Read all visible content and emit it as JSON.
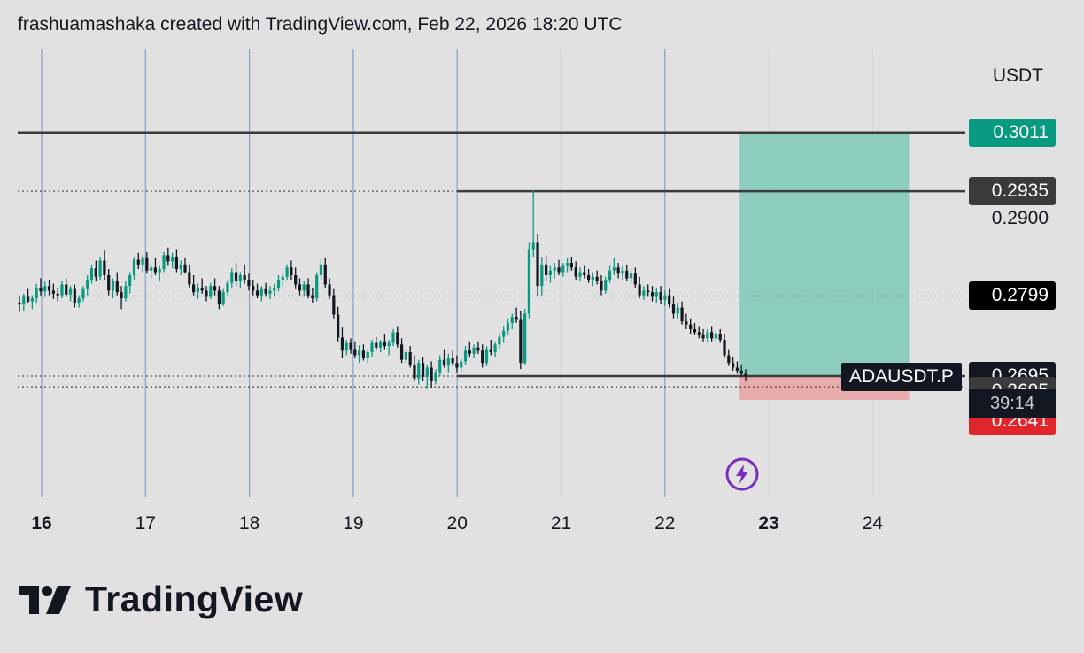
{
  "header": {
    "attribution": "frashuamashaka created with TradingView.com, Feb 22, 2026 18:20 UTC"
  },
  "symbol": "ADAUSDT.P",
  "currency": "USDT",
  "countdown": "39:14",
  "logo_text": "TradingView",
  "colors": {
    "up": "#089981",
    "down": "#131722",
    "target_zone": "#88cbbc",
    "stop_zone": "#e9a6a8",
    "grid_vertical": "#8c9cc6",
    "accent_purple": "#7b2cbf"
  },
  "price_labels": [
    {
      "text": "0.3011",
      "bg": "#089981",
      "fg": "#ffffff",
      "price": 0.3011
    },
    {
      "text": "0.2935",
      "bg": "#3b3b3b",
      "fg": "#ffffff",
      "price": 0.2935
    },
    {
      "text": "0.2900",
      "bg": "transparent",
      "fg": "#131722",
      "price": 0.29
    },
    {
      "text": "0.2799",
      "bg": "#000000",
      "fg": "#ffffff",
      "price": 0.2799
    },
    {
      "text": "0.2695",
      "bg": "#131722",
      "fg": "#ffffff",
      "price": 0.2695
    },
    {
      "text": "0.2695",
      "bg": "#3b3b3b",
      "fg": "#ffffff",
      "price": 0.2675
    },
    {
      "text": "0.2694",
      "bg": "#787b86",
      "fg": "#ffffff",
      "price": 0.2655
    },
    {
      "text": "0.2641",
      "bg": "#e0262d",
      "fg": "#ffffff",
      "price": 0.2636
    }
  ],
  "chart_data": {
    "type": "candlestick",
    "symbol": "ADAUSDT.P",
    "x_axis": {
      "ticks": [
        "16",
        "17",
        "18",
        "19",
        "20",
        "21",
        "22",
        "23",
        "24"
      ],
      "bold_ticks": [
        "16",
        "23"
      ]
    },
    "y_axis": {
      "unit": "USDT",
      "range": [
        0.263,
        0.305
      ]
    },
    "horizontal_levels": [
      {
        "price": 0.3011,
        "style": "solid",
        "from_day": 15.8,
        "to_day": 25.0
      },
      {
        "price": 0.2935,
        "style": "solid",
        "from_day": 20.0,
        "to_day": 25.0
      },
      {
        "price": 0.2935,
        "style": "dotted",
        "from_day": 15.8,
        "to_day": 20.0
      },
      {
        "price": 0.2799,
        "style": "dotted",
        "from_day": 15.8,
        "to_day": 25.0
      },
      {
        "price": 0.2695,
        "style": "solid",
        "from_day": 20.0,
        "to_day": 25.0
      },
      {
        "price": 0.2695,
        "style": "dotted",
        "from_day": 15.8,
        "to_day": 20.0
      },
      {
        "price": 0.2681,
        "style": "dotted",
        "from_day": 15.8,
        "to_day": 25.0
      }
    ],
    "position": {
      "type": "long",
      "entry": 0.2695,
      "target": 0.3011,
      "stop": 0.2664,
      "from_day": 22.72,
      "to_day": 24.35
    },
    "candles": [
      [
        0.279,
        0.2798,
        0.2778,
        0.2788
      ],
      [
        0.2788,
        0.2802,
        0.278,
        0.2798
      ],
      [
        0.2798,
        0.2808,
        0.279,
        0.2792
      ],
      [
        0.2792,
        0.28,
        0.2782,
        0.2796
      ],
      [
        0.2796,
        0.2815,
        0.279,
        0.281
      ],
      [
        0.281,
        0.2822,
        0.28,
        0.2805
      ],
      [
        0.2805,
        0.2818,
        0.2798,
        0.2812
      ],
      [
        0.2812,
        0.282,
        0.28,
        0.2806
      ],
      [
        0.2806,
        0.2815,
        0.2795,
        0.2802
      ],
      [
        0.2802,
        0.281,
        0.2792,
        0.28
      ],
      [
        0.28,
        0.2818,
        0.2796,
        0.2814
      ],
      [
        0.2814,
        0.2822,
        0.2798,
        0.2801
      ],
      [
        0.2801,
        0.2812,
        0.2792,
        0.2808
      ],
      [
        0.2808,
        0.2814,
        0.2784,
        0.279
      ],
      [
        0.279,
        0.28,
        0.2784,
        0.2796
      ],
      [
        0.2796,
        0.2812,
        0.2792,
        0.2808
      ],
      [
        0.2808,
        0.2826,
        0.28,
        0.282
      ],
      [
        0.282,
        0.284,
        0.2815,
        0.2835
      ],
      [
        0.2835,
        0.2845,
        0.2818,
        0.2824
      ],
      [
        0.2824,
        0.285,
        0.282,
        0.2845
      ],
      [
        0.2845,
        0.2858,
        0.282,
        0.2826
      ],
      [
        0.2826,
        0.2834,
        0.28,
        0.2806
      ],
      [
        0.2806,
        0.2822,
        0.2796,
        0.2818
      ],
      [
        0.2818,
        0.283,
        0.28,
        0.2804
      ],
      [
        0.2804,
        0.2812,
        0.2782,
        0.2796
      ],
      [
        0.2796,
        0.2818,
        0.2792,
        0.2812
      ],
      [
        0.2812,
        0.283,
        0.2802,
        0.2826
      ],
      [
        0.2826,
        0.285,
        0.282,
        0.2846
      ],
      [
        0.2846,
        0.2855,
        0.2834,
        0.284
      ],
      [
        0.284,
        0.2852,
        0.283,
        0.2848
      ],
      [
        0.2848,
        0.2856,
        0.2828,
        0.2832
      ],
      [
        0.2832,
        0.284,
        0.2822,
        0.2836
      ],
      [
        0.2836,
        0.2848,
        0.2826,
        0.283
      ],
      [
        0.283,
        0.2838,
        0.2818,
        0.2834
      ],
      [
        0.2834,
        0.2856,
        0.283,
        0.2852
      ],
      [
        0.2852,
        0.2862,
        0.2838,
        0.2844
      ],
      [
        0.2844,
        0.2855,
        0.2835,
        0.285
      ],
      [
        0.285,
        0.286,
        0.283,
        0.2834
      ],
      [
        0.2834,
        0.2845,
        0.2826,
        0.284
      ],
      [
        0.284,
        0.2848,
        0.2828,
        0.283
      ],
      [
        0.283,
        0.284,
        0.281,
        0.2814
      ],
      [
        0.2814,
        0.2826,
        0.28,
        0.2804
      ],
      [
        0.2804,
        0.2815,
        0.2795,
        0.281
      ],
      [
        0.281,
        0.2822,
        0.2802,
        0.2806
      ],
      [
        0.2806,
        0.2812,
        0.2792,
        0.2798
      ],
      [
        0.2798,
        0.2816,
        0.2795,
        0.2812
      ],
      [
        0.2812,
        0.2822,
        0.28,
        0.2806
      ],
      [
        0.2806,
        0.2812,
        0.2782,
        0.2788
      ],
      [
        0.2788,
        0.2808,
        0.2786,
        0.2804
      ],
      [
        0.2804,
        0.282,
        0.28,
        0.2816
      ],
      [
        0.2816,
        0.2835,
        0.281,
        0.283
      ],
      [
        0.283,
        0.2842,
        0.2812,
        0.2818
      ],
      [
        0.2818,
        0.283,
        0.281,
        0.2826
      ],
      [
        0.2826,
        0.284,
        0.2815,
        0.282
      ],
      [
        0.282,
        0.2828,
        0.2806,
        0.2812
      ],
      [
        0.2812,
        0.282,
        0.28,
        0.2806
      ],
      [
        0.2806,
        0.2815,
        0.2796,
        0.28
      ],
      [
        0.28,
        0.2812,
        0.2792,
        0.2808
      ],
      [
        0.2808,
        0.2816,
        0.2798,
        0.2802
      ],
      [
        0.2802,
        0.2812,
        0.2795,
        0.2806
      ],
      [
        0.2806,
        0.2815,
        0.2798,
        0.281
      ],
      [
        0.281,
        0.2826,
        0.2805,
        0.282
      ],
      [
        0.282,
        0.283,
        0.2812,
        0.2824
      ],
      [
        0.2824,
        0.284,
        0.282,
        0.2836
      ],
      [
        0.2836,
        0.2845,
        0.282,
        0.2826
      ],
      [
        0.2826,
        0.2836,
        0.2808,
        0.2814
      ],
      [
        0.2814,
        0.2822,
        0.28,
        0.2806
      ],
      [
        0.2806,
        0.2818,
        0.2798,
        0.2814
      ],
      [
        0.2814,
        0.2822,
        0.2796,
        0.28
      ],
      [
        0.28,
        0.281,
        0.279,
        0.2796
      ],
      [
        0.2796,
        0.283,
        0.2792,
        0.2826
      ],
      [
        0.2826,
        0.2846,
        0.282,
        0.284
      ],
      [
        0.284,
        0.2848,
        0.281,
        0.2814
      ],
      [
        0.2814,
        0.2822,
        0.2795,
        0.28
      ],
      [
        0.28,
        0.2808,
        0.277,
        0.2775
      ],
      [
        0.2775,
        0.2785,
        0.274,
        0.2745
      ],
      [
        0.2745,
        0.2758,
        0.2718,
        0.2728
      ],
      [
        0.2728,
        0.2742,
        0.2722,
        0.2738
      ],
      [
        0.2738,
        0.2744,
        0.2724,
        0.273
      ],
      [
        0.273,
        0.274,
        0.2718,
        0.2722
      ],
      [
        0.2722,
        0.2735,
        0.2712,
        0.2728
      ],
      [
        0.2728,
        0.2736,
        0.2715,
        0.2718
      ],
      [
        0.2718,
        0.273,
        0.2712,
        0.2726
      ],
      [
        0.2726,
        0.2742,
        0.272,
        0.2738
      ],
      [
        0.2738,
        0.2746,
        0.2728,
        0.2732
      ],
      [
        0.2732,
        0.2742,
        0.2726,
        0.274
      ],
      [
        0.274,
        0.275,
        0.273,
        0.2734
      ],
      [
        0.2734,
        0.2742,
        0.2722,
        0.2738
      ],
      [
        0.2738,
        0.2756,
        0.2734,
        0.2752
      ],
      [
        0.2752,
        0.276,
        0.2732,
        0.2736
      ],
      [
        0.2736,
        0.2744,
        0.2712,
        0.2716
      ],
      [
        0.2716,
        0.273,
        0.2712,
        0.2726
      ],
      [
        0.2726,
        0.2734,
        0.2706,
        0.271
      ],
      [
        0.271,
        0.2722,
        0.2688,
        0.2692
      ],
      [
        0.2692,
        0.2716,
        0.2684,
        0.2712
      ],
      [
        0.2712,
        0.272,
        0.2688,
        0.2694
      ],
      [
        0.2694,
        0.271,
        0.2678,
        0.2706
      ],
      [
        0.2706,
        0.2714,
        0.268,
        0.2688
      ],
      [
        0.2688,
        0.2704,
        0.2684,
        0.27
      ],
      [
        0.27,
        0.2722,
        0.2695,
        0.2716
      ],
      [
        0.2716,
        0.273,
        0.2706,
        0.271
      ],
      [
        0.271,
        0.2724,
        0.27,
        0.2718
      ],
      [
        0.2718,
        0.2728,
        0.2708,
        0.2712
      ],
      [
        0.2712,
        0.2722,
        0.27,
        0.2706
      ],
      [
        0.2706,
        0.2718,
        0.27,
        0.2714
      ],
      [
        0.2714,
        0.2734,
        0.271,
        0.2728
      ],
      [
        0.2728,
        0.274,
        0.272,
        0.2724
      ],
      [
        0.2724,
        0.2736,
        0.2718,
        0.2732
      ],
      [
        0.2732,
        0.274,
        0.2724,
        0.2728
      ],
      [
        0.2728,
        0.2736,
        0.2706,
        0.2712
      ],
      [
        0.2712,
        0.2734,
        0.2708,
        0.273
      ],
      [
        0.273,
        0.2742,
        0.2722,
        0.2726
      ],
      [
        0.2726,
        0.274,
        0.272,
        0.2736
      ],
      [
        0.2736,
        0.2752,
        0.273,
        0.2746
      ],
      [
        0.2746,
        0.276,
        0.2738,
        0.2754
      ],
      [
        0.2754,
        0.277,
        0.2748,
        0.2764
      ],
      [
        0.2764,
        0.2776,
        0.2756,
        0.2772
      ],
      [
        0.2772,
        0.2784,
        0.2764,
        0.2768
      ],
      [
        0.2768,
        0.278,
        0.2704,
        0.2712
      ],
      [
        0.2712,
        0.2782,
        0.271,
        0.2776
      ],
      [
        0.2776,
        0.2868,
        0.277,
        0.286
      ],
      [
        0.286,
        0.2936,
        0.285,
        0.2868
      ],
      [
        0.2868,
        0.288,
        0.28,
        0.2812
      ],
      [
        0.2812,
        0.285,
        0.28,
        0.284
      ],
      [
        0.284,
        0.2852,
        0.2818,
        0.2826
      ],
      [
        0.2826,
        0.2838,
        0.2816,
        0.2832
      ],
      [
        0.2832,
        0.2842,
        0.2822,
        0.2836
      ],
      [
        0.2836,
        0.2846,
        0.2826,
        0.283
      ],
      [
        0.283,
        0.2842,
        0.2824,
        0.2838
      ],
      [
        0.2838,
        0.2848,
        0.283,
        0.2842
      ],
      [
        0.2842,
        0.285,
        0.2832,
        0.2836
      ],
      [
        0.2836,
        0.2844,
        0.282,
        0.2824
      ],
      [
        0.2824,
        0.2836,
        0.2818,
        0.283
      ],
      [
        0.283,
        0.2838,
        0.2822,
        0.2826
      ],
      [
        0.2826,
        0.2834,
        0.2816,
        0.282
      ],
      [
        0.282,
        0.283,
        0.2812,
        0.2824
      ],
      [
        0.2824,
        0.2832,
        0.2814,
        0.2818
      ],
      [
        0.2818,
        0.2826,
        0.28,
        0.2806
      ],
      [
        0.2806,
        0.2824,
        0.2802,
        0.282
      ],
      [
        0.282,
        0.2838,
        0.2816,
        0.2832
      ],
      [
        0.2832,
        0.2848,
        0.2826,
        0.2836
      ],
      [
        0.2836,
        0.2842,
        0.2822,
        0.2828
      ],
      [
        0.2828,
        0.2838,
        0.282,
        0.2832
      ],
      [
        0.2832,
        0.284,
        0.2818,
        0.2822
      ],
      [
        0.2822,
        0.2834,
        0.2816,
        0.2828
      ],
      [
        0.2828,
        0.2836,
        0.281,
        0.2814
      ],
      [
        0.2814,
        0.2824,
        0.2796,
        0.28
      ],
      [
        0.28,
        0.2812,
        0.2794,
        0.2806
      ],
      [
        0.2806,
        0.2814,
        0.2798,
        0.2804
      ],
      [
        0.2804,
        0.2812,
        0.2792,
        0.2798
      ],
      [
        0.2798,
        0.281,
        0.279,
        0.2804
      ],
      [
        0.2804,
        0.2812,
        0.2788,
        0.2794
      ],
      [
        0.2794,
        0.2806,
        0.2786,
        0.28
      ],
      [
        0.28,
        0.2808,
        0.2784,
        0.2788
      ],
      [
        0.2788,
        0.2798,
        0.277,
        0.2776
      ],
      [
        0.2776,
        0.279,
        0.277,
        0.2784
      ],
      [
        0.2784,
        0.2792,
        0.2762,
        0.2766
      ],
      [
        0.2766,
        0.2776,
        0.2756,
        0.2762
      ],
      [
        0.2762,
        0.277,
        0.275,
        0.2756
      ],
      [
        0.2756,
        0.2764,
        0.2748,
        0.2752
      ],
      [
        0.2752,
        0.276,
        0.2744,
        0.2748
      ],
      [
        0.2748,
        0.2756,
        0.274,
        0.2744
      ],
      [
        0.2744,
        0.2756,
        0.2738,
        0.2752
      ],
      [
        0.2752,
        0.276,
        0.274,
        0.2744
      ],
      [
        0.2744,
        0.2754,
        0.274,
        0.275
      ],
      [
        0.275,
        0.2756,
        0.2738,
        0.2742
      ],
      [
        0.2742,
        0.275,
        0.2718,
        0.2722
      ],
      [
        0.2722,
        0.273,
        0.2708,
        0.2712
      ],
      [
        0.2712,
        0.272,
        0.2702,
        0.2706
      ],
      [
        0.2706,
        0.2714,
        0.2698,
        0.2702
      ],
      [
        0.2702,
        0.271,
        0.2694,
        0.2698
      ],
      [
        0.2698,
        0.2704,
        0.2688,
        0.2695
      ]
    ]
  }
}
